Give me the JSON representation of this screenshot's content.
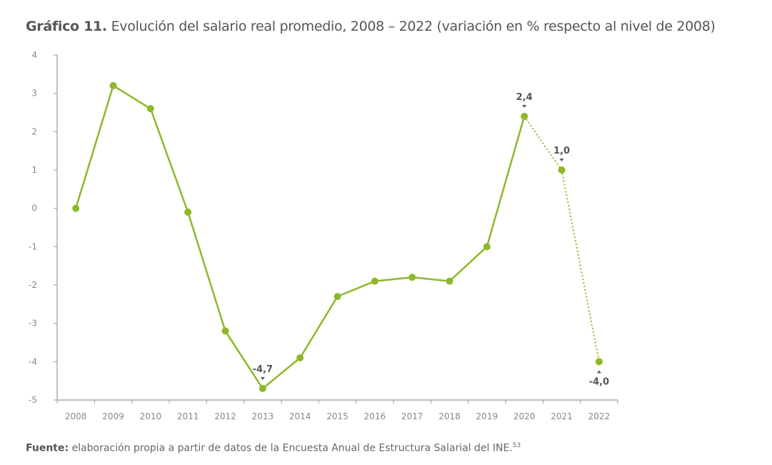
{
  "title": {
    "prefix": "Gráfico 11.",
    "text": " Evolución del salario real promedio, 2008 – 2022 (variación en % respecto al nivel de 2008)"
  },
  "source": {
    "label": "Fuente:",
    "text": " elaboración propia a partir de datos de la Encuesta Anual de Estructura Salarial del INE.",
    "note": "53"
  },
  "chart_data": {
    "type": "line",
    "categories": [
      "2008",
      "2009",
      "2010",
      "2011",
      "2012",
      "2013",
      "2014",
      "2015",
      "2016",
      "2017",
      "2018",
      "2019",
      "2020",
      "2021",
      "2022"
    ],
    "values": [
      0,
      3.2,
      2.6,
      -0.1,
      -3.2,
      -4.7,
      -3.9,
      -2.3,
      -1.9,
      -1.8,
      -1.9,
      -1.0,
      2.4,
      1.0,
      -4.0
    ],
    "dotted_from": "2020",
    "ylim": [
      -5,
      4
    ],
    "yticks": [
      4,
      3,
      2,
      1,
      0,
      -1,
      -2,
      -3,
      -4,
      -5
    ],
    "annotations": [
      {
        "category": "2013",
        "text": "-4,7",
        "position": "above"
      },
      {
        "category": "2020",
        "text": "2,4",
        "position": "above"
      },
      {
        "category": "2021",
        "text": "1,0",
        "position": "above"
      },
      {
        "category": "2022",
        "text": "-4,0",
        "position": "below"
      }
    ],
    "color": "#8db82a",
    "grid": false
  }
}
